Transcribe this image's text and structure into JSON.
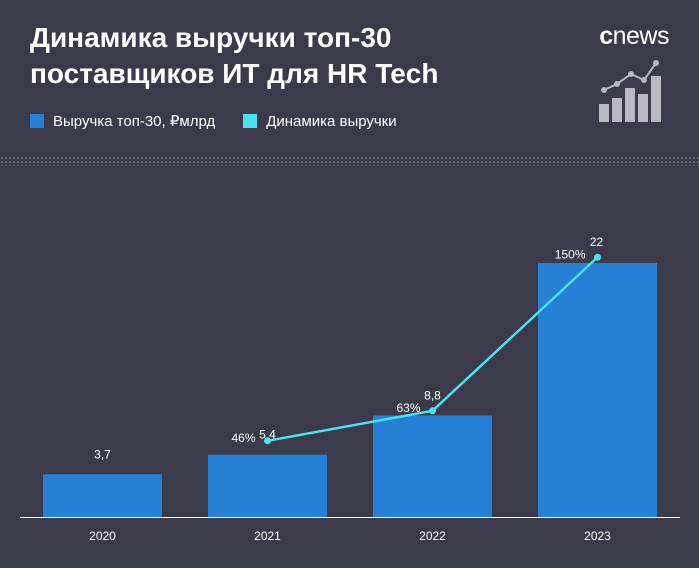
{
  "header": {
    "title": "Динамика выручки топ-30 поставщиков ИТ для HR Tech",
    "brand_c": "c",
    "brand_word": "news"
  },
  "legend": {
    "items": [
      {
        "label": "Выручка топ-30, ₽млрд",
        "color": "#2680d6"
      },
      {
        "label": "Динамика выручки",
        "color": "#4fe0f0"
      }
    ]
  },
  "chart_data": {
    "type": "bar",
    "categories": [
      "2020",
      "2021",
      "2022",
      "2023"
    ],
    "series": [
      {
        "name": "Выручка топ-30, ₽млрд",
        "type": "bar",
        "values": [
          3.7,
          5.4,
          8.8,
          22
        ],
        "labels": [
          "3,7",
          "5,4",
          "8,8",
          "22"
        ],
        "color": "#2680d6"
      },
      {
        "name": "Динамика выручки",
        "type": "line",
        "values": [
          null,
          46,
          63,
          150
        ],
        "labels": [
          "",
          "46%",
          "63%",
          "150%"
        ],
        "color": "#4fe0f0"
      }
    ],
    "ylim": [
      0,
      22
    ],
    "grid": false,
    "legend_position": "top-left"
  }
}
